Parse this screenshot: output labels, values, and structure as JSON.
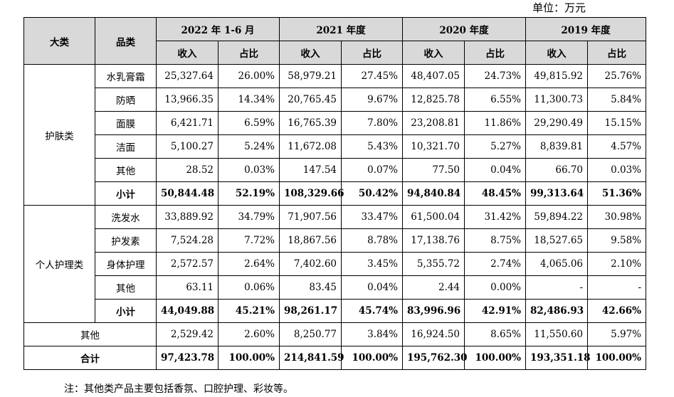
{
  "unit_label": "单位：万元",
  "note": "注：其他类产品主要包括香氛、口腔护理、彩妆等。",
  "header": {
    "col_category": "大类",
    "col_product": "品类",
    "periods": [
      "2022 年 1-6 月",
      "2021 年度",
      "2020 年度",
      "2019 年度"
    ],
    "revenue_label": "收入",
    "share_label": "占比"
  },
  "groups": {
    "skincare": {
      "name": "护肤类",
      "rows": [
        {
          "product": "水乳膏霜",
          "values": [
            "25,327.64",
            "26.00%",
            "58,979.21",
            "27.45%",
            "48,407.05",
            "24.73%",
            "49,815.92",
            "25.76%"
          ]
        },
        {
          "product": "防晒",
          "values": [
            "13,966.35",
            "14.34%",
            "20,765.45",
            "9.67%",
            "12,825.78",
            "6.55%",
            "11,300.73",
            "5.84%"
          ]
        },
        {
          "product": "面膜",
          "values": [
            "6,421.71",
            "6.59%",
            "16,765.39",
            "7.80%",
            "23,208.81",
            "11.86%",
            "29,290.49",
            "15.15%"
          ]
        },
        {
          "product": "洁面",
          "values": [
            "5,100.27",
            "5.24%",
            "11,672.08",
            "5.43%",
            "10,321.70",
            "5.27%",
            "8,839.81",
            "4.57%"
          ]
        },
        {
          "product": "其他",
          "values": [
            "28.52",
            "0.03%",
            "147.54",
            "0.07%",
            "77.50",
            "0.04%",
            "66.70",
            "0.03%"
          ]
        }
      ],
      "subtotal": {
        "product": "小计",
        "values": [
          "50,844.48",
          "52.19%",
          "108,329.66",
          "50.42%",
          "94,840.84",
          "48.45%",
          "99,313.64",
          "51.36%"
        ]
      }
    },
    "personal_care": {
      "name": "个人护理类",
      "rows": [
        {
          "product": "洗发水",
          "values": [
            "33,889.92",
            "34.79%",
            "71,907.56",
            "33.47%",
            "61,500.04",
            "31.42%",
            "59,894.22",
            "30.98%"
          ]
        },
        {
          "product": "护发素",
          "values": [
            "7,524.28",
            "7.72%",
            "18,867.56",
            "8.78%",
            "17,138.76",
            "8.75%",
            "18,527.65",
            "9.58%"
          ]
        },
        {
          "product": "身体护理",
          "values": [
            "2,572.57",
            "2.64%",
            "7,402.60",
            "3.45%",
            "5,355.72",
            "2.74%",
            "4,065.06",
            "2.10%"
          ]
        },
        {
          "product": "其他",
          "values": [
            "63.11",
            "0.06%",
            "83.45",
            "0.04%",
            "2.44",
            "0.00%",
            "-",
            "-"
          ]
        }
      ],
      "subtotal": {
        "product": "小计",
        "values": [
          "44,049.88",
          "45.21%",
          "98,261.17",
          "45.74%",
          "83,996.96",
          "42.91%",
          "82,486.93",
          "42.66%"
        ]
      }
    }
  },
  "other_row": {
    "label": "其他",
    "values": [
      "2,529.42",
      "2.60%",
      "8,250.77",
      "3.84%",
      "16,924.50",
      "8.65%",
      "11,550.60",
      "5.97%"
    ]
  },
  "total_row": {
    "label": "合计",
    "values": [
      "97,423.78",
      "100.00%",
      "214,841.59",
      "100.00%",
      "195,762.30",
      "100.00%",
      "193,351.18",
      "100.00%"
    ]
  }
}
